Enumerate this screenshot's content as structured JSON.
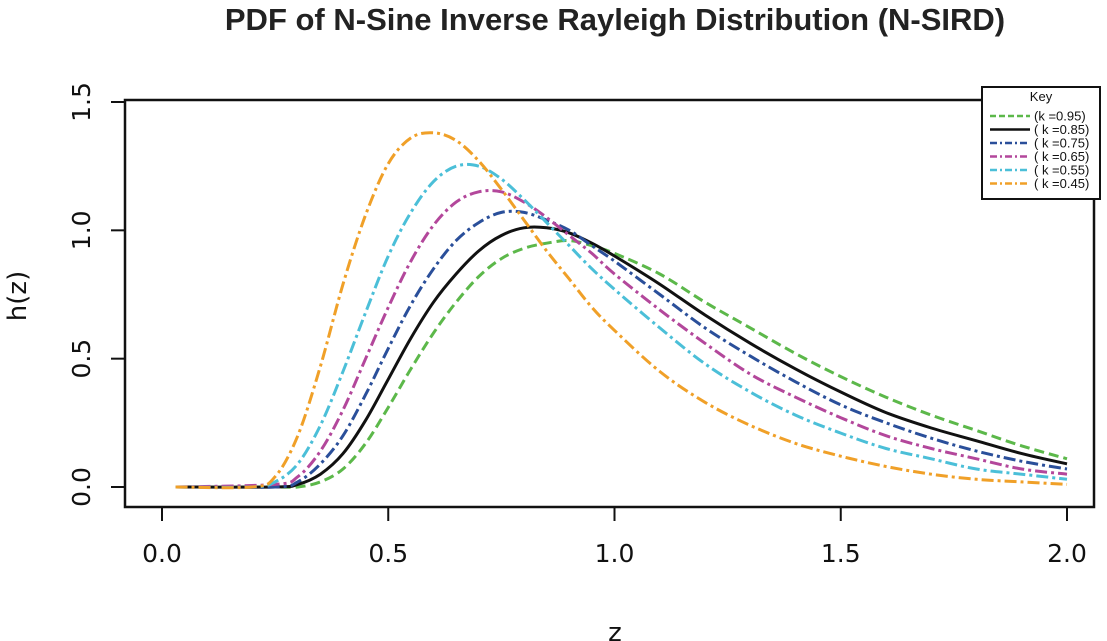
{
  "chart_data": {
    "type": "line",
    "title": "PDF of N-Sine Inverse Rayleigh Distribution (N-SIRD)",
    "xlabel": "z",
    "ylabel": "h(z)",
    "xlim": [
      0.0,
      2.0
    ],
    "ylim": [
      0.0,
      1.5
    ],
    "x_ticks": [
      "0.0",
      "0.5",
      "1.0",
      "1.5",
      "2.0"
    ],
    "y_ticks": [
      "0.0",
      "0.5",
      "1.0",
      "1.5"
    ],
    "legend": {
      "title": "Key",
      "position": "top-right"
    },
    "series": [
      {
        "name": "(k =0.95)",
        "color": "#5cb84a",
        "dash": "dash",
        "x": [
          0.03,
          0.25,
          0.3,
          0.35,
          0.4,
          0.45,
          0.5,
          0.55,
          0.6,
          0.65,
          0.7,
          0.75,
          0.8,
          0.85,
          0.9,
          0.95,
          1.0,
          1.1,
          1.2,
          1.3,
          1.4,
          1.5,
          1.6,
          1.7,
          1.8,
          1.9,
          2.0
        ],
        "y": [
          0.0,
          0.0,
          0.0,
          0.02,
          0.07,
          0.17,
          0.31,
          0.46,
          0.6,
          0.72,
          0.82,
          0.89,
          0.93,
          0.95,
          0.96,
          0.94,
          0.91,
          0.83,
          0.72,
          0.62,
          0.52,
          0.43,
          0.35,
          0.28,
          0.22,
          0.16,
          0.11
        ]
      },
      {
        "name": "( k =0.85)",
        "color": "#111111",
        "dash": "solid",
        "x": [
          0.03,
          0.25,
          0.3,
          0.35,
          0.4,
          0.45,
          0.5,
          0.55,
          0.6,
          0.65,
          0.7,
          0.75,
          0.8,
          0.85,
          0.9,
          0.95,
          1.0,
          1.1,
          1.2,
          1.3,
          1.4,
          1.5,
          1.6,
          1.7,
          1.8,
          1.9,
          2.0
        ],
        "y": [
          0.0,
          0.0,
          0.01,
          0.05,
          0.13,
          0.26,
          0.42,
          0.58,
          0.72,
          0.83,
          0.92,
          0.98,
          1.01,
          1.01,
          0.99,
          0.95,
          0.9,
          0.79,
          0.67,
          0.56,
          0.46,
          0.37,
          0.29,
          0.23,
          0.18,
          0.13,
          0.09
        ]
      },
      {
        "name": "( k =0.75)",
        "color": "#2a4f9a",
        "dash": "dashdot",
        "x": [
          0.03,
          0.25,
          0.3,
          0.35,
          0.4,
          0.45,
          0.5,
          0.55,
          0.6,
          0.65,
          0.7,
          0.75,
          0.8,
          0.85,
          0.9,
          0.95,
          1.0,
          1.1,
          1.2,
          1.3,
          1.4,
          1.5,
          1.6,
          1.7,
          1.8,
          1.9,
          2.0
        ],
        "y": [
          0.0,
          0.0,
          0.02,
          0.09,
          0.2,
          0.36,
          0.54,
          0.71,
          0.85,
          0.96,
          1.03,
          1.07,
          1.07,
          1.04,
          1.0,
          0.94,
          0.88,
          0.75,
          0.62,
          0.51,
          0.41,
          0.32,
          0.25,
          0.19,
          0.14,
          0.1,
          0.07
        ]
      },
      {
        "name": "( k =0.65)",
        "color": "#b3479b",
        "dash": "dashdot",
        "x": [
          0.03,
          0.25,
          0.3,
          0.35,
          0.4,
          0.45,
          0.5,
          0.55,
          0.6,
          0.65,
          0.7,
          0.75,
          0.8,
          0.85,
          0.9,
          0.95,
          1.0,
          1.1,
          1.2,
          1.3,
          1.4,
          1.5,
          1.6,
          1.7,
          1.8,
          1.9,
          2.0
        ],
        "y": [
          0.0,
          0.01,
          0.04,
          0.14,
          0.3,
          0.5,
          0.7,
          0.88,
          1.02,
          1.11,
          1.15,
          1.15,
          1.11,
          1.05,
          0.98,
          0.91,
          0.83,
          0.69,
          0.56,
          0.44,
          0.35,
          0.27,
          0.2,
          0.15,
          0.11,
          0.07,
          0.05
        ]
      },
      {
        "name": "( k =0.55)",
        "color": "#4bbfd8",
        "dash": "dashdot",
        "x": [
          0.03,
          0.2,
          0.25,
          0.3,
          0.35,
          0.4,
          0.45,
          0.5,
          0.55,
          0.6,
          0.65,
          0.7,
          0.75,
          0.8,
          0.85,
          0.9,
          0.95,
          1.0,
          1.1,
          1.2,
          1.3,
          1.4,
          1.5,
          1.6,
          1.7,
          1.8,
          1.9,
          2.0
        ],
        "y": [
          0.0,
          0.0,
          0.02,
          0.09,
          0.24,
          0.45,
          0.68,
          0.9,
          1.07,
          1.19,
          1.25,
          1.25,
          1.2,
          1.12,
          1.03,
          0.94,
          0.85,
          0.77,
          0.62,
          0.48,
          0.37,
          0.28,
          0.21,
          0.15,
          0.11,
          0.07,
          0.05,
          0.03
        ]
      },
      {
        "name": "( k =0.45)",
        "color": "#f0a028",
        "dash": "dashdot",
        "x": [
          0.03,
          0.2,
          0.25,
          0.3,
          0.35,
          0.4,
          0.45,
          0.5,
          0.55,
          0.6,
          0.65,
          0.7,
          0.75,
          0.8,
          0.85,
          0.9,
          0.95,
          1.0,
          1.1,
          1.2,
          1.3,
          1.4,
          1.5,
          1.6,
          1.7,
          1.8,
          1.9,
          2.0
        ],
        "y": [
          0.0,
          0.0,
          0.04,
          0.2,
          0.47,
          0.79,
          1.06,
          1.26,
          1.36,
          1.38,
          1.35,
          1.27,
          1.16,
          1.04,
          0.92,
          0.81,
          0.7,
          0.61,
          0.45,
          0.33,
          0.24,
          0.17,
          0.12,
          0.08,
          0.05,
          0.03,
          0.02,
          0.01
        ]
      }
    ]
  }
}
